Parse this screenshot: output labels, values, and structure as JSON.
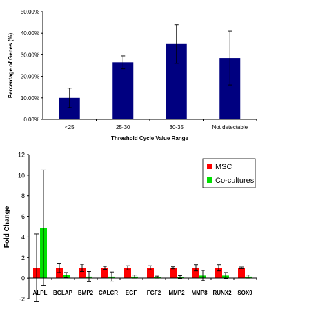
{
  "chart_data": [
    {
      "type": "bar",
      "title": "",
      "xlabel": "Threshold Cycle Value Range",
      "ylabel": "Percentage of Genes (%)",
      "categories": [
        "<25",
        "25-30",
        "30-35",
        "Not detectable"
      ],
      "values": [
        10.0,
        26.5,
        35.0,
        28.5
      ],
      "errors": [
        4.5,
        3.0,
        9.0,
        12.5
      ],
      "ylim": [
        0,
        50
      ],
      "yticks": [
        "0.00%",
        "10.00%",
        "20.00%",
        "30.00%",
        "40.00%",
        "50.00%"
      ],
      "ytick_values": [
        0,
        10,
        20,
        30,
        40,
        50
      ],
      "grid": false,
      "colors": {
        "bar": "#000080"
      }
    },
    {
      "type": "bar",
      "title": "",
      "xlabel": "",
      "ylabel": "Fold Change",
      "categories": [
        "ALPL",
        "BGLAP",
        "BMP2",
        "CALCR",
        "EGF",
        "FGF2",
        "MMP2",
        "MMP8",
        "RUNX2",
        "SOX9"
      ],
      "series": [
        {
          "name": "MSC",
          "color": "#ff0000",
          "values": [
            1,
            1,
            1,
            1,
            1,
            1,
            1,
            1,
            1,
            1
          ],
          "errors": [
            3.3,
            0.45,
            0.35,
            0.15,
            0.2,
            0.2,
            0.1,
            0.3,
            0.3,
            0.08
          ]
        },
        {
          "name": "Co-cultures",
          "color": "#00e000",
          "values": [
            4.9,
            0.3,
            0.15,
            0.15,
            0.15,
            0.1,
            0.1,
            0.25,
            0.25,
            0.15
          ],
          "errors": [
            5.6,
            0.25,
            0.5,
            0.45,
            0.15,
            0.1,
            0.15,
            0.5,
            0.3,
            0.15
          ]
        }
      ],
      "ylim": [
        -2,
        12
      ],
      "yticks": [
        "-2",
        "0",
        "2",
        "4",
        "6",
        "8",
        "10",
        "12"
      ],
      "ytick_values": [
        -2,
        0,
        2,
        4,
        6,
        8,
        10,
        12
      ],
      "legend": "top-right",
      "grid": false
    }
  ]
}
